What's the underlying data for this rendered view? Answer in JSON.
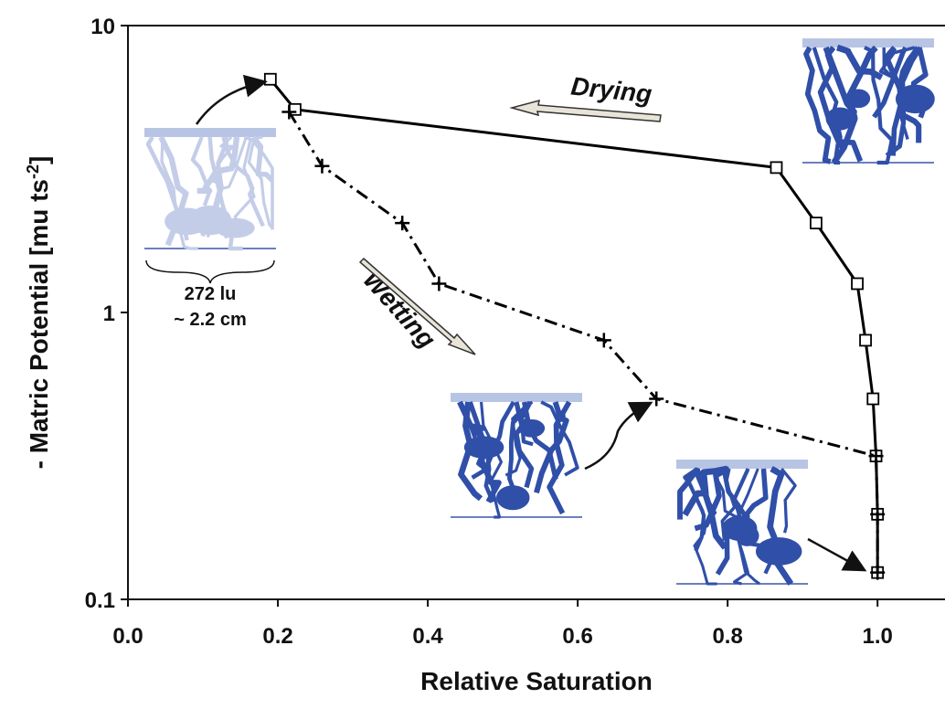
{
  "chart_data": {
    "type": "line",
    "xlabel": "Relative Saturation",
    "ylabel": {
      "text": "- Matric Potential [mu ts",
      "sup": "-2",
      "end": "]"
    },
    "xlim": [
      0,
      1.09
    ],
    "ylim": [
      0.1,
      10
    ],
    "log_y": true,
    "xticks": [
      {
        "value": 0,
        "label": "0.0"
      },
      {
        "value": 0.2,
        "label": "0.2"
      },
      {
        "value": 0.4,
        "label": "0.4"
      },
      {
        "value": 0.6,
        "label": "0.6"
      },
      {
        "value": 0.8,
        "label": "0.8"
      },
      {
        "value": 1,
        "label": "1.0"
      }
    ],
    "yticks": [
      0.1,
      1,
      10
    ],
    "annotations": [
      "272 lu",
      "~ 2.2 cm"
    ],
    "series": [
      {
        "name": "Drying",
        "color": "#000000",
        "marker": "square",
        "dash": "solid",
        "x": [
          1.0,
          1.0,
          0.998,
          0.994,
          0.984,
          0.973,
          0.918,
          0.865,
          0.223,
          0.19
        ],
        "values": [
          0.124,
          0.198,
          0.316,
          0.5,
          0.8,
          1.26,
          2.05,
          3.2,
          5.1,
          6.5
        ]
      },
      {
        "name": "Wetting",
        "color": "#000000",
        "marker": "plus",
        "dash": "dashdot",
        "x": [
          0.215,
          0.259,
          0.366,
          0.415,
          0.635,
          0.705,
          0.998,
          1.0,
          1.0
        ],
        "values": [
          5.0,
          3.24,
          2.05,
          1.26,
          0.8,
          0.5,
          0.316,
          0.198,
          0.124
        ]
      }
    ]
  }
}
